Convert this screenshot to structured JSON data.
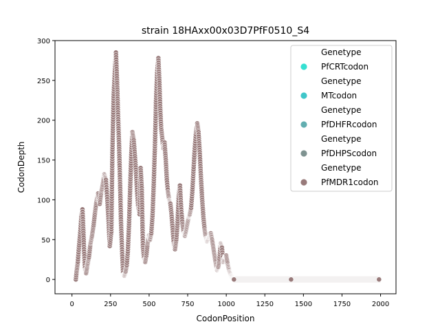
{
  "chart_data": {
    "type": "scatter",
    "title": "strain 18HAxx00x03D7PfF0510_S4",
    "xlabel": "CodonPosition",
    "ylabel": "CodonDepth",
    "xlim": [
      -110,
      2100
    ],
    "ylim": [
      -18,
      300
    ],
    "xticks": [
      0,
      250,
      500,
      750,
      1000,
      1250,
      1500,
      1750,
      2000
    ],
    "yticks": [
      0,
      50,
      100,
      150,
      200,
      250,
      300
    ],
    "grid": false,
    "legend_position": "top-right",
    "legend": [
      {
        "header": "Genetype",
        "label": "PfCRTcodon",
        "color": "#35e0d2"
      },
      {
        "header": "Genetype",
        "label": "MTcodon",
        "color": "#3fc6c9"
      },
      {
        "header": "Genetype",
        "label": "PfDHFRcodon",
        "color": "#62aeb0"
      },
      {
        "header": "Genetype",
        "label": "PfDHPScodon",
        "color": "#7f9391"
      },
      {
        "header": "Genetype",
        "label": "PfMDR1codon",
        "color": "#987a7a"
      }
    ],
    "series": [
      {
        "name": "PfMDR1codon",
        "color": "#987a7a",
        "profile": [
          [
            25,
            0
          ],
          [
            30,
            10
          ],
          [
            38,
            22
          ],
          [
            45,
            40
          ],
          [
            55,
            62
          ],
          [
            62,
            82
          ],
          [
            68,
            88
          ],
          [
            72,
            70
          ],
          [
            78,
            38
          ],
          [
            85,
            12
          ],
          [
            92,
            8
          ],
          [
            100,
            18
          ],
          [
            110,
            28
          ],
          [
            120,
            45
          ],
          [
            130,
            55
          ],
          [
            140,
            68
          ],
          [
            150,
            85
          ],
          [
            160,
            100
          ],
          [
            170,
            108
          ],
          [
            180,
            95
          ],
          [
            190,
            110
          ],
          [
            200,
            120
          ],
          [
            210,
            132
          ],
          [
            220,
            125
          ],
          [
            230,
            98
          ],
          [
            238,
            70
          ],
          [
            245,
            42
          ],
          [
            255,
            60
          ],
          [
            262,
            160
          ],
          [
            270,
            230
          ],
          [
            278,
            262
          ],
          [
            285,
            285
          ],
          [
            292,
            250
          ],
          [
            298,
            210
          ],
          [
            305,
            170
          ],
          [
            312,
            120
          ],
          [
            318,
            70
          ],
          [
            325,
            35
          ],
          [
            332,
            6
          ],
          [
            340,
            5
          ],
          [
            348,
            10
          ],
          [
            355,
            18
          ],
          [
            362,
            35
          ],
          [
            370,
            70
          ],
          [
            378,
            120
          ],
          [
            385,
            160
          ],
          [
            392,
            185
          ],
          [
            400,
            175
          ],
          [
            408,
            155
          ],
          [
            415,
            135
          ],
          [
            422,
            110
          ],
          [
            430,
            90
          ],
          [
            438,
            82
          ],
          [
            445,
            140
          ],
          [
            452,
            115
          ],
          [
            460,
            40
          ],
          [
            468,
            25
          ],
          [
            475,
            22
          ],
          [
            482,
            30
          ],
          [
            490,
            45
          ],
          [
            498,
            55
          ],
          [
            506,
            50
          ],
          [
            514,
            58
          ],
          [
            522,
            80
          ],
          [
            530,
            120
          ],
          [
            538,
            170
          ],
          [
            545,
            225
          ],
          [
            552,
            260
          ],
          [
            560,
            278
          ],
          [
            566,
            250
          ],
          [
            572,
            215
          ],
          [
            578,
            190
          ],
          [
            585,
            178
          ],
          [
            592,
            165
          ],
          [
            600,
            172
          ],
          [
            608,
            150
          ],
          [
            615,
            125
          ],
          [
            622,
            110
          ],
          [
            630,
            100
          ],
          [
            638,
            95
          ],
          [
            645,
            82
          ],
          [
            652,
            65
          ],
          [
            660,
            45
          ],
          [
            668,
            38
          ],
          [
            676,
            50
          ],
          [
            684,
            70
          ],
          [
            692,
            105
          ],
          [
            700,
            118
          ],
          [
            708,
            88
          ],
          [
            716,
            70
          ],
          [
            724,
            58
          ],
          [
            732,
            55
          ],
          [
            740,
            62
          ],
          [
            748,
            70
          ],
          [
            756,
            78
          ],
          [
            764,
            82
          ],
          [
            772,
            90
          ],
          [
            780,
            110
          ],
          [
            788,
            138
          ],
          [
            796,
            165
          ],
          [
            804,
            185
          ],
          [
            812,
            196
          ],
          [
            820,
            185
          ],
          [
            828,
            160
          ],
          [
            836,
            128
          ],
          [
            844,
            100
          ],
          [
            852,
            78
          ],
          [
            860,
            62
          ],
          [
            868,
            52
          ],
          [
            876,
            48
          ],
          [
            884,
            52
          ],
          [
            892,
            55
          ],
          [
            900,
            58
          ],
          [
            908,
            50
          ],
          [
            916,
            40
          ],
          [
            924,
            30
          ],
          [
            932,
            20
          ],
          [
            940,
            12
          ],
          [
            948,
            16
          ],
          [
            956,
            26
          ],
          [
            964,
            45
          ],
          [
            972,
            40
          ],
          [
            980,
            22
          ],
          [
            990,
            28
          ],
          [
            1000,
            30
          ],
          [
            1010,
            18
          ],
          [
            1020,
            10
          ],
          [
            1030,
            5
          ],
          [
            1040,
            2
          ],
          [
            1050,
            0
          ],
          [
            1420,
            0
          ],
          [
            1990,
            0
          ]
        ]
      }
    ]
  }
}
